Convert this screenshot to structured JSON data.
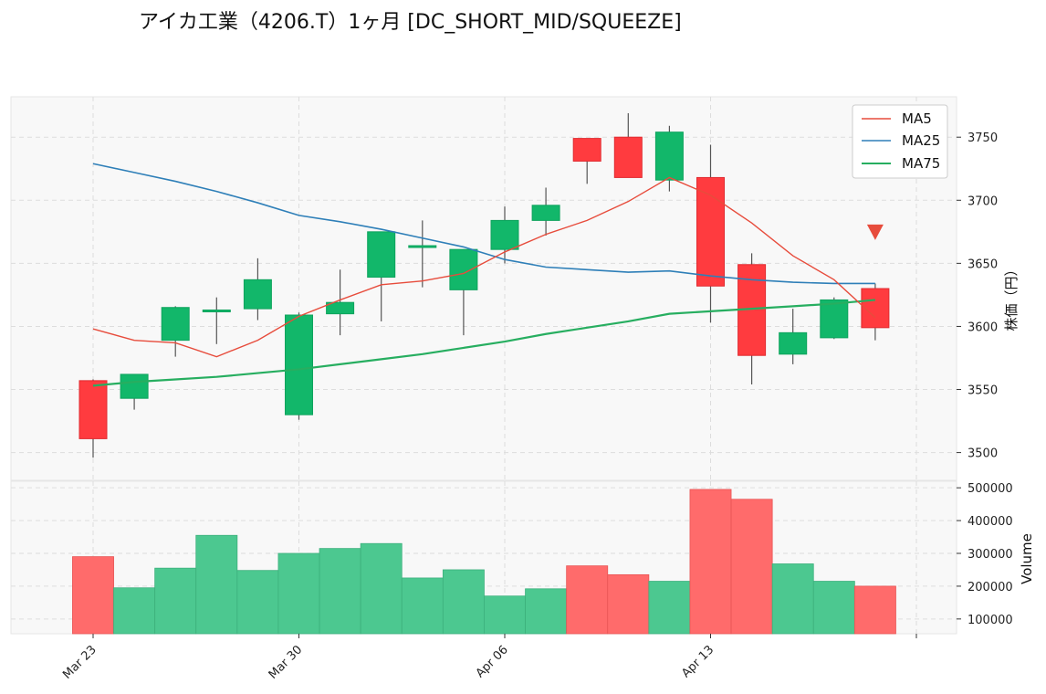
{
  "title": "アイカ工業（4206.T）1ヶ月 [DC_SHORT_MID/SQUEEZE]",
  "colors": {
    "up": "#12b76a",
    "down": "#ff3b3f",
    "vol_up": "#4cc890",
    "vol_down": "#ff6b6b",
    "ma5": "#e74c3c",
    "ma25": "#2e7fb8",
    "ma75": "#27ae60",
    "signal": "#e74c3c"
  },
  "chart_data": {
    "type": "candlestick",
    "dates": [
      "Mar 23",
      "Mar 24",
      "Mar 25",
      "Mar 26",
      "Mar 27",
      "Mar 30",
      "Mar 31",
      "Apr 01",
      "Apr 02",
      "Apr 03",
      "Apr 06",
      "Apr 07",
      "Apr 08",
      "Apr 09",
      "Apr 10",
      "Apr 13",
      "Apr 14",
      "Apr 15",
      "Apr 16",
      "Apr 17"
    ],
    "x_tick_labels": [
      "Mar 23",
      "Mar 30",
      "Apr 06",
      "Apr 13"
    ],
    "open": [
      3557,
      3543,
      3589,
      3613,
      3614,
      3530,
      3610,
      3639,
      3664,
      3629,
      3661,
      3684,
      3749,
      3750,
      3716,
      3718,
      3649,
      3578,
      3591,
      3630
    ],
    "high": [
      3558,
      3562,
      3616,
      3623,
      3654,
      3611,
      3645,
      3675,
      3684,
      3661,
      3695,
      3710,
      3749,
      3769,
      3759,
      3744,
      3658,
      3614,
      3623,
      3634
    ],
    "low": [
      3496,
      3534,
      3576,
      3586,
      3605,
      3526,
      3593,
      3604,
      3631,
      3593,
      3650,
      3672,
      3713,
      3718,
      3707,
      3603,
      3554,
      3570,
      3590,
      3589
    ],
    "close": [
      3511,
      3562,
      3615,
      3613,
      3637,
      3609,
      3619,
      3675,
      3664,
      3661,
      3684,
      3696,
      3731,
      3718,
      3754,
      3632,
      3577,
      3595,
      3621,
      3599
    ],
    "ma5": [
      3598,
      3589,
      3587,
      3576,
      3589,
      3608,
      3621,
      3633,
      3636,
      3642,
      3659,
      3673,
      3684,
      3699,
      3718,
      3704,
      3682,
      3656,
      3637,
      3607
    ],
    "ma25": [
      3729,
      3722,
      3715,
      3707,
      3698,
      3688,
      3683,
      3677,
      3670,
      3663,
      3653,
      3647,
      3645,
      3643,
      3644,
      3640,
      3637,
      3635,
      3634,
      3634
    ],
    "ma75": [
      3553,
      3556,
      3558,
      3560,
      3563,
      3566,
      3570,
      3574,
      3578,
      3583,
      3588,
      3594,
      3599,
      3604,
      3610,
      3612,
      3614,
      3616,
      3618,
      3621
    ],
    "volume": [
      290000,
      195000,
      255000,
      355000,
      248000,
      300000,
      315000,
      330000,
      225000,
      250000,
      170000,
      192000,
      262000,
      235000,
      215000,
      495000,
      465000,
      268000,
      215000,
      200000
    ],
    "price_ylabel": "株価（円）",
    "volume_ylabel": "Volume",
    "price_ticks": [
      3500,
      3550,
      3600,
      3650,
      3700,
      3750
    ],
    "volume_ticks": [
      100000,
      200000,
      300000,
      400000,
      500000
    ],
    "price_ylim": [
      3478,
      3782
    ],
    "volume_ylim": [
      55000,
      520000
    ],
    "signal": {
      "type": "sell-triangle",
      "date": "Apr 17",
      "price": 3675
    },
    "legend": {
      "position": "top-right",
      "entries": [
        "MA5",
        "MA25",
        "MA75"
      ]
    },
    "grid": true
  }
}
